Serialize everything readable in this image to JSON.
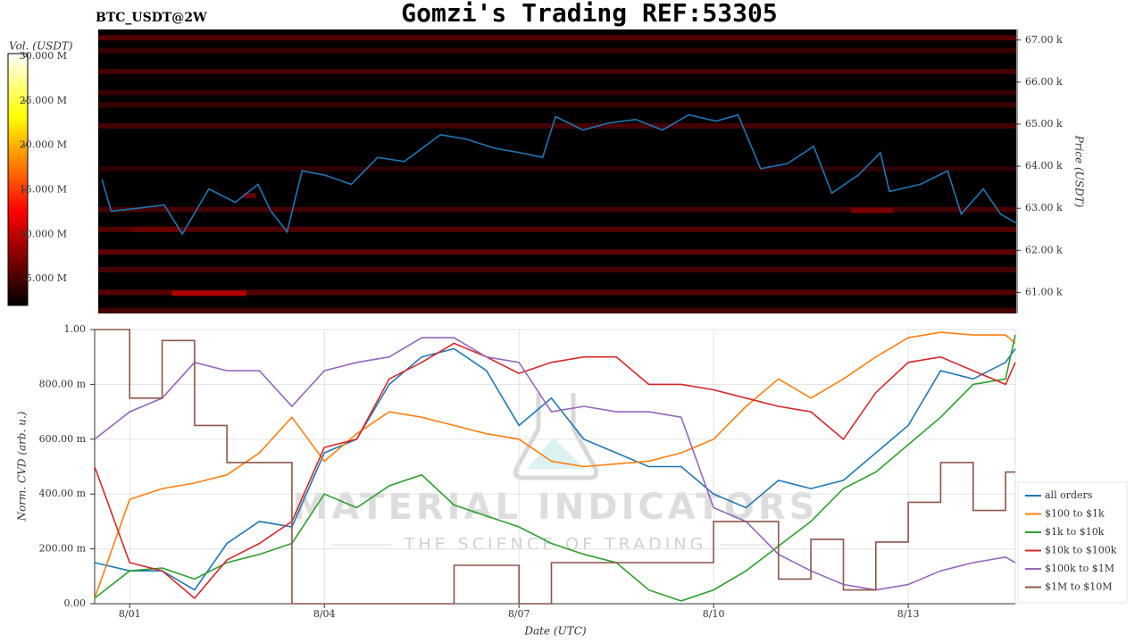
{
  "chart_data": [
    {
      "type": "heatmap",
      "title": "Gomzi's Trading REF:53305",
      "subtitle": "BTC_USDT@2W",
      "ylabel": "Price (USDT)",
      "ylim": [
        60500,
        67250
      ],
      "yticks": [
        {
          "value": 61000,
          "label": "61.00 k"
        },
        {
          "value": 62000,
          "label": "62.00 k"
        },
        {
          "value": 63000,
          "label": "63.00 k"
        },
        {
          "value": 64000,
          "label": "64.00 k"
        },
        {
          "value": 65000,
          "label": "65.00 k"
        },
        {
          "value": 66000,
          "label": "66.00 k"
        },
        {
          "value": 67000,
          "label": "67.00 k"
        }
      ],
      "xlim": [
        0.46,
        14.65
      ],
      "colormap": "hot",
      "colorbar_label": "Vol. (USDT)",
      "colorbar_lim": [
        2,
        30.3
      ],
      "colorbar_ticks": [
        {
          "value": 5,
          "label": "5.000 M"
        },
        {
          "value": 10,
          "label": "10.000 M"
        },
        {
          "value": 15,
          "label": "15.000 M"
        },
        {
          "value": 20,
          "label": "20.000 M"
        },
        {
          "value": 25,
          "label": "25.000 M"
        },
        {
          "value": 30,
          "label": "30.000 M"
        }
      ],
      "band_prices": [
        67050,
        66750,
        66250,
        65750,
        65460,
        64960,
        63940,
        62970,
        62500,
        61960,
        61540,
        61000,
        60570,
        60980,
        62500,
        62950,
        63300
      ],
      "band_volumes": [
        8,
        6,
        7,
        6,
        6,
        7,
        5,
        7,
        8,
        9,
        7,
        8,
        7,
        15,
        10,
        11,
        9
      ],
      "band_from": [
        0.46,
        0.46,
        0.46,
        0.46,
        0.46,
        0.46,
        0.46,
        0.46,
        0.46,
        0.46,
        0.46,
        0.46,
        0.46,
        1.6,
        1.0,
        12.1,
        2.7
      ],
      "band_to": [
        14.65,
        14.65,
        14.65,
        14.65,
        14.65,
        14.65,
        14.65,
        14.65,
        14.65,
        14.65,
        14.65,
        14.65,
        14.65,
        2.75,
        1.7,
        12.75,
        2.9
      ],
      "line_color": "#1f77b4",
      "x": [
        0.52,
        0.66,
        1.07,
        1.48,
        1.76,
        2.17,
        2.58,
        2.93,
        3.13,
        3.38,
        3.61,
        3.96,
        4.37,
        4.78,
        5.19,
        5.75,
        6.16,
        6.58,
        6.98,
        7.33,
        7.53,
        7.95,
        8.36,
        8.77,
        9.18,
        9.59,
        10.01,
        10.35,
        10.7,
        11.11,
        11.52,
        11.8,
        12.21,
        12.55,
        12.69,
        13.17,
        13.59,
        13.8,
        14.14,
        14.41,
        14.65
      ],
      "values": [
        63680,
        62930,
        63000,
        63080,
        62390,
        63460,
        63140,
        63570,
        62930,
        62440,
        63890,
        63790,
        63570,
        64210,
        64110,
        64750,
        64640,
        64430,
        64320,
        64210,
        65180,
        64860,
        65030,
        65110,
        64860,
        65220,
        65070,
        65220,
        63940,
        64060,
        64470,
        63360,
        63790,
        64320,
        63400,
        63570,
        63890,
        62860,
        63460,
        62860,
        62650
      ]
    },
    {
      "type": "line",
      "ylabel": "Norm. CVD (arb. u.)",
      "xlabel": "Date (UTC)",
      "ylim": [
        0,
        1
      ],
      "yticks": [
        {
          "value": 0,
          "label": "0.00"
        },
        {
          "value": 0.2,
          "label": "200.00 m"
        },
        {
          "value": 0.4,
          "label": "400.00 m"
        },
        {
          "value": 0.6,
          "label": "600.00 m"
        },
        {
          "value": 0.8,
          "label": "800.00 m"
        },
        {
          "value": 1,
          "label": "1.00"
        }
      ],
      "xlim": [
        0.46,
        14.65
      ],
      "xticks": [
        {
          "value": 1,
          "label": "8/01"
        },
        {
          "value": 4,
          "label": "8/04"
        },
        {
          "value": 7,
          "label": "8/07"
        },
        {
          "value": 10,
          "label": "8/10"
        },
        {
          "value": 13,
          "label": "8/13"
        }
      ],
      "grid": true,
      "legend": "right",
      "watermark": {
        "title": "MATERIAL INDICATORS",
        "tagline": "THE SCIENCE OF TRADING"
      },
      "x": [
        0.46,
        1,
        1.5,
        2,
        2.5,
        3,
        3.5,
        4,
        4.5,
        5,
        5.5,
        6,
        6.5,
        7,
        7.5,
        8,
        8.5,
        9,
        9.5,
        10,
        10.5,
        11,
        11.5,
        12,
        12.5,
        13,
        13.5,
        14,
        14.5,
        14.65
      ],
      "series": [
        {
          "name": "all orders",
          "color": "#1f77b4",
          "values": [
            0.15,
            0.12,
            0.12,
            0.05,
            0.22,
            0.3,
            0.28,
            0.55,
            0.6,
            0.8,
            0.9,
            0.93,
            0.85,
            0.65,
            0.75,
            0.6,
            0.55,
            0.5,
            0.5,
            0.4,
            0.35,
            0.45,
            0.42,
            0.45,
            0.55,
            0.65,
            0.85,
            0.82,
            0.88,
            0.93
          ]
        },
        {
          "name": "$100 to $1k",
          "color": "#ff7f0e",
          "values": [
            0.02,
            0.38,
            0.42,
            0.44,
            0.47,
            0.55,
            0.68,
            0.52,
            0.62,
            0.7,
            0.68,
            0.65,
            0.62,
            0.6,
            0.52,
            0.5,
            0.51,
            0.52,
            0.55,
            0.6,
            0.72,
            0.82,
            0.75,
            0.82,
            0.9,
            0.97,
            0.99,
            0.98,
            0.98,
            0.95
          ]
        },
        {
          "name": "$1k to $10k",
          "color": "#2ca02c",
          "values": [
            0.02,
            0.12,
            0.13,
            0.09,
            0.15,
            0.18,
            0.22,
            0.4,
            0.35,
            0.43,
            0.47,
            0.36,
            0.32,
            0.28,
            0.22,
            0.18,
            0.15,
            0.05,
            0.01,
            0.05,
            0.12,
            0.21,
            0.3,
            0.42,
            0.48,
            0.58,
            0.68,
            0.8,
            0.82,
            0.98
          ]
        },
        {
          "name": "$10k to $100k",
          "color": "#d62728",
          "values": [
            0.5,
            0.15,
            0.12,
            0.02,
            0.16,
            0.22,
            0.3,
            0.57,
            0.6,
            0.82,
            0.88,
            0.95,
            0.9,
            0.84,
            0.88,
            0.9,
            0.9,
            0.8,
            0.8,
            0.78,
            0.75,
            0.72,
            0.7,
            0.6,
            0.77,
            0.88,
            0.9,
            0.85,
            0.8,
            0.88
          ]
        },
        {
          "name": "$100k to $1M",
          "color": "#9467bd",
          "values": [
            0.6,
            0.7,
            0.75,
            0.88,
            0.85,
            0.85,
            0.72,
            0.85,
            0.88,
            0.9,
            0.97,
            0.97,
            0.9,
            0.88,
            0.7,
            0.72,
            0.7,
            0.7,
            0.68,
            0.35,
            0.3,
            0.18,
            0.12,
            0.07,
            0.05,
            0.07,
            0.12,
            0.15,
            0.17,
            0.15
          ]
        },
        {
          "name": "$1M to $10M",
          "color": "#8c564b",
          "line_shape": "hv",
          "values": [
            1,
            0.75,
            0.96,
            0.65,
            0.515,
            0.515,
            0,
            0,
            0,
            0,
            0,
            0.14,
            0.14,
            0,
            0.15,
            0.15,
            0.15,
            0.15,
            0.15,
            0.3,
            0.3,
            0.09,
            0.235,
            0.05,
            0.225,
            0.37,
            0.515,
            0.34,
            0.48,
            0.48
          ]
        }
      ]
    }
  ]
}
